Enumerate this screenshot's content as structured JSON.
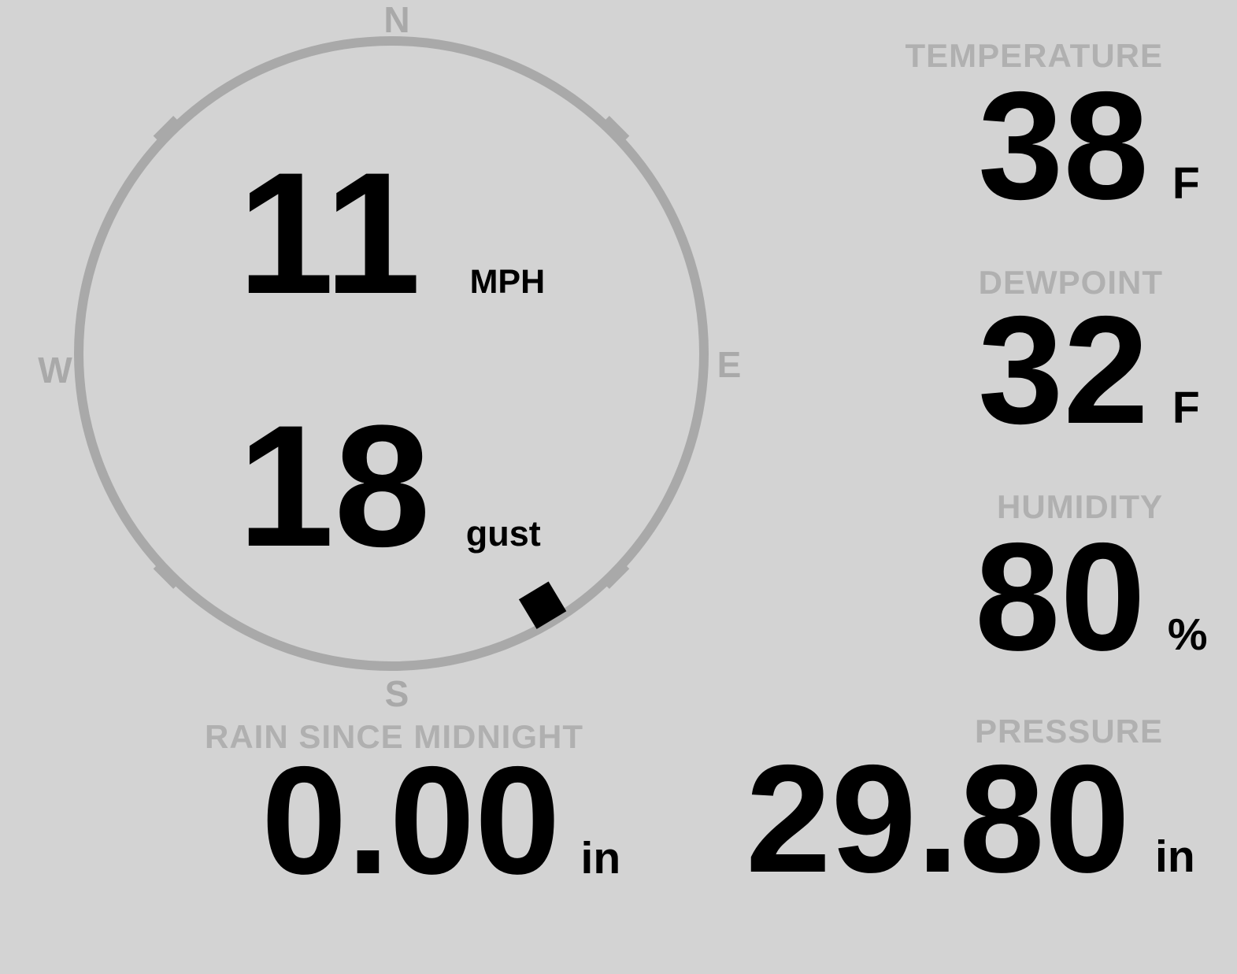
{
  "colors": {
    "background": "#d3d3d3",
    "compass_gray": "#a9a9a9",
    "label_gray": "#b0b0b0",
    "value_ink": "#000000"
  },
  "wind": {
    "speed": "11",
    "speed_unit": "MPH",
    "gust": "18",
    "gust_unit": "gust",
    "direction_deg": 149,
    "compass": {
      "north": "N",
      "east": "E",
      "south": "S",
      "west": "W"
    }
  },
  "readings": {
    "temperature": {
      "label": "TEMPERATURE",
      "value": "38",
      "unit": "F"
    },
    "dewpoint": {
      "label": "DEWPOINT",
      "value": "32",
      "unit": "F"
    },
    "humidity": {
      "label": "HUMIDITY",
      "value": "80",
      "unit": "%"
    },
    "rain": {
      "label": "RAIN SINCE MIDNIGHT",
      "value": "0.00",
      "unit": "in"
    },
    "pressure": {
      "label": "PRESSURE",
      "value": "29.80",
      "unit": "in"
    }
  }
}
